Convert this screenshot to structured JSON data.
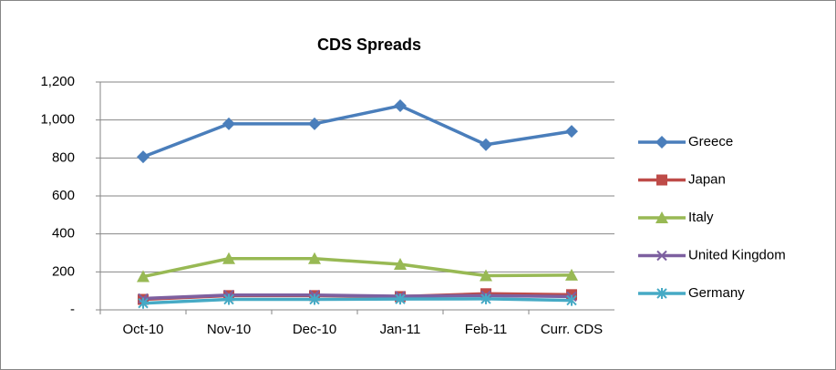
{
  "chart_data": {
    "type": "line",
    "title": "CDS Spreads",
    "categories": [
      "Oct-10",
      "Nov-10",
      "Dec-10",
      "Jan-11",
      "Feb-11",
      "Curr. CDS"
    ],
    "series": [
      {
        "name": "Greece",
        "color": "#4a7ebb",
        "marker": "diamond",
        "values": [
          806,
          980,
          980,
          1075,
          870,
          940
        ]
      },
      {
        "name": "Japan",
        "color": "#be4b48",
        "marker": "square",
        "values": [
          55,
          75,
          75,
          70,
          85,
          80
        ]
      },
      {
        "name": "Italy",
        "color": "#98b954",
        "marker": "triangle",
        "values": [
          175,
          270,
          270,
          240,
          180,
          183
        ]
      },
      {
        "name": "United Kingdom",
        "color": "#7d60a0",
        "marker": "x",
        "values": [
          60,
          78,
          78,
          72,
          75,
          70
        ]
      },
      {
        "name": "Germany",
        "color": "#46aac5",
        "marker": "asterisk",
        "values": [
          35,
          55,
          55,
          57,
          58,
          50
        ]
      }
    ],
    "ylim": [
      0,
      1200
    ],
    "yticks": [
      {
        "value": 0,
        "label": "-"
      },
      200,
      400,
      600,
      800,
      {
        "value": 1000,
        "label": "1,000"
      },
      {
        "value": 1200,
        "label": "1,200"
      }
    ],
    "grid": true,
    "legend": "right"
  }
}
